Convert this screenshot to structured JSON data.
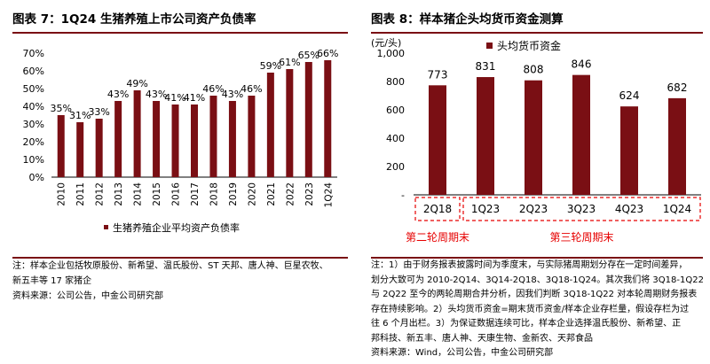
{
  "left": {
    "title": "图表 7：1Q24 生猪养殖上市公司资产负债率",
    "note_lines": [
      "注：样本企业包括牧原股份、新希望、温氏股份、ST 天邦、唐人神、巨星农牧、",
      "新五丰等 17 家猪企",
      "资料来源：公司公告，中金公司研究部"
    ]
  },
  "right": {
    "title": "图表 8：样本猪企头均货币资金测算",
    "period_labels": [
      "第二轮周期末",
      "第三轮周期末"
    ],
    "note_lines": [
      "注：1）由于财务报表披露时间为季度末，与实际猪周期划分存在一定时间差异，",
      "划分大致可为 2010-2Q14、3Q14-2Q18、3Q18-1Q24。其次我们将 3Q18-1Q22",
      "与 2Q22 至今的两轮周期合并分析，因我们判断 3Q18-1Q22 对本轮周期财务报表",
      "存在持续影响。2）头均货币资金=期末货币资金/样本企业存栏量，假设存栏为过",
      "往 6 个月出栏。3）为保证数据连续可比，样本企业选择温氏股份、新希望、正",
      "邦科技、新五丰、唐人神、天康生物、金新农、天邦食品",
      "资料来源：Wind，公司公告，中金公司研究部"
    ]
  },
  "chart_data": [
    {
      "type": "bar",
      "title": "图表 7：1Q24 生猪养殖上市公司资产负债率",
      "categories": [
        "2010",
        "2011",
        "2012",
        "2013",
        "2014",
        "2015",
        "2016",
        "2017",
        "2018",
        "2019",
        "2020",
        "2021",
        "2022",
        "2023",
        "1Q24"
      ],
      "series": [
        {
          "name": "生猪养殖企业平均资产负债率",
          "values": [
            35,
            31,
            33,
            43,
            49,
            43,
            41,
            41,
            46,
            43,
            46,
            59,
            61,
            65,
            66
          ]
        }
      ],
      "data_labels": [
        "35%",
        "31%",
        "33%",
        "43%",
        "49%",
        "43%",
        "41%",
        "41%",
        "46%",
        "43%",
        "46%",
        "59%",
        "61%",
        "65%",
        "66%"
      ],
      "yticks": [
        "0%",
        "10%",
        "20%",
        "30%",
        "40%",
        "50%",
        "60%",
        "70%"
      ],
      "ylim": [
        0,
        70
      ],
      "color": "#7a0f14",
      "legend": "bottom"
    },
    {
      "type": "bar",
      "title": "图表 8：样本猪企头均货币资金测算",
      "ylabel": "(元/头)",
      "categories": [
        "2Q18",
        "1Q23",
        "2Q23",
        "3Q23",
        "4Q23",
        "1Q24"
      ],
      "series": [
        {
          "name": "头均货币资金",
          "values": [
            773,
            831,
            808,
            846,
            624,
            682
          ]
        }
      ],
      "yticks": [
        "-",
        "200",
        "400",
        "600",
        "800",
        "1,000"
      ],
      "ylim": [
        0,
        1000
      ],
      "color": "#7a0f14",
      "highlight_color": "#e60000",
      "legend": "top-left"
    }
  ]
}
